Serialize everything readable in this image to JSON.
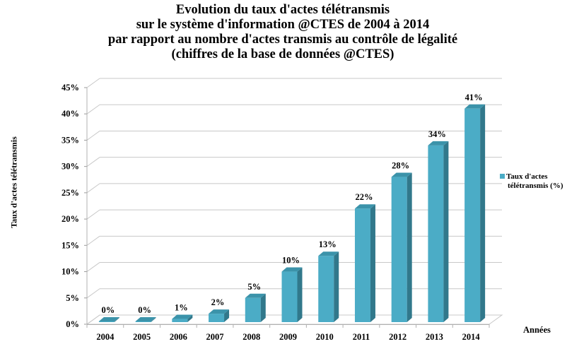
{
  "chart_data": {
    "type": "bar",
    "title": [
      "Evolution du taux d'actes télétransmis",
      "sur le système d'information @CTES de 2004 à 2014",
      "par rapport au nombre d'actes transmis au contrôle de légalité",
      "(chiffres de la base de données @CTES)"
    ],
    "xlabel": "Années",
    "ylabel": "Taux d'actes télétransmis",
    "categories": [
      "2004",
      "2005",
      "2006",
      "2007",
      "2008",
      "2009",
      "2010",
      "2011",
      "2012",
      "2013",
      "2014"
    ],
    "series": [
      {
        "name": "Taux d'actes télétransmis (%)",
        "name_lines": [
          "Taux d'actes",
          "télétransmis (%)"
        ],
        "values": [
          0,
          0,
          1,
          2,
          5,
          10,
          13,
          22,
          28,
          34,
          41
        ],
        "data_labels": [
          "0%",
          "0%",
          "1%",
          "2%",
          "5%",
          "10%",
          "13%",
          "22%",
          "28%",
          "34%",
          "41%"
        ],
        "color": "#4BACC6"
      }
    ],
    "ylim": [
      0,
      45
    ],
    "yticks": [
      0,
      5,
      10,
      15,
      20,
      25,
      30,
      35,
      40,
      45
    ],
    "ytick_labels": [
      "0%",
      "5%",
      "10%",
      "15%",
      "20%",
      "25%",
      "30%",
      "35%",
      "40%",
      "45%"
    ],
    "grid": true,
    "style_3d": true,
    "legend_position": "right",
    "colors": {
      "front": "#4BACC6",
      "side": "#31788B",
      "top": "#3B93AA",
      "grid": "#C8C8C8"
    }
  }
}
